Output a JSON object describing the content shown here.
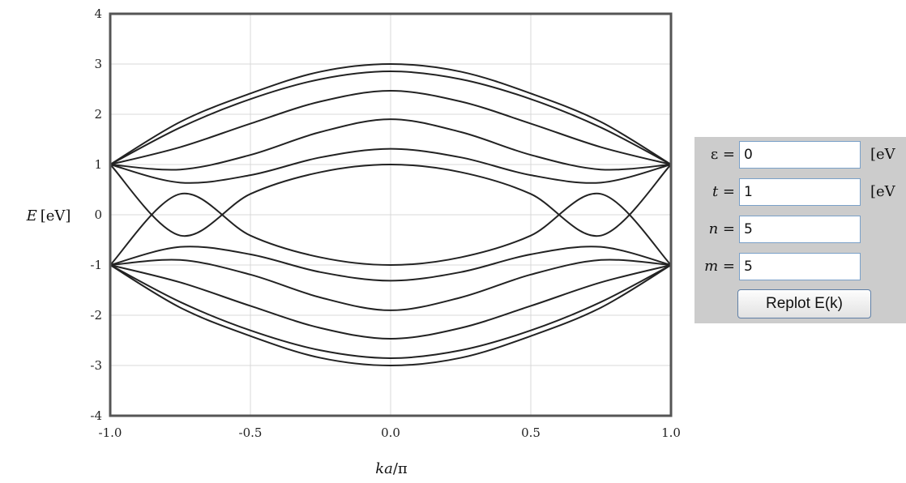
{
  "chart_data": {
    "type": "line",
    "title": "",
    "xlabel": {
      "prefix": "ka",
      "suffix": "/π"
    },
    "ylabel": {
      "var": "E",
      "unit": "[eV]"
    },
    "xlim": [
      -1.0,
      1.0
    ],
    "ylim": [
      -4,
      4
    ],
    "x_ticks": [
      -1.0,
      -0.5,
      0.0,
      0.5,
      1.0
    ],
    "x_tick_labels": [
      "-1.0",
      "-0.5",
      "0.0",
      "0.5",
      "1.0"
    ],
    "y_ticks": [
      -4,
      -3,
      -2,
      -1,
      0,
      1,
      2,
      3,
      4
    ],
    "y_tick_labels": [
      "-4",
      "-3",
      "-2",
      "-1",
      "0",
      "1",
      "2",
      "3",
      "4"
    ],
    "grid": true,
    "line_color": "#222222",
    "grid_color": "#d9d9d9",
    "frame_color": "#555555",
    "series": [
      {
        "x": [
          -1.0,
          -0.75,
          -0.5,
          -0.25,
          0.0,
          0.25,
          0.5,
          0.75,
          1.0
        ],
        "values": [
          1.0,
          1.848,
          2.414,
          2.848,
          3.0,
          2.848,
          2.414,
          1.848,
          1.0
        ]
      },
      {
        "x": [
          -1.0,
          -0.75,
          -0.5,
          -0.25,
          0.0,
          0.25,
          0.5,
          0.75,
          1.0
        ],
        "values": [
          1.0,
          1.737,
          2.302,
          2.698,
          2.854,
          2.698,
          2.302,
          1.737,
          1.0
        ]
      },
      {
        "x": [
          -1.0,
          -0.75,
          -0.5,
          -0.25,
          0.0,
          0.25,
          0.5,
          0.75,
          1.0
        ],
        "values": [
          1.0,
          1.346,
          1.814,
          2.254,
          2.468,
          2.254,
          1.814,
          1.346,
          1.0
        ]
      },
      {
        "x": [
          -1.0,
          -0.75,
          -0.5,
          -0.25,
          0.0,
          0.25,
          0.5,
          0.75,
          1.0
        ],
        "values": [
          1.0,
          0.9,
          1.191,
          1.647,
          1.902,
          1.647,
          1.191,
          0.9,
          1.0
        ]
      },
      {
        "x": [
          -1.0,
          -0.75,
          -0.5,
          -0.25,
          0.0,
          0.25,
          0.5,
          0.75,
          1.0
        ],
        "values": [
          1.0,
          0.64,
          0.788,
          1.142,
          1.313,
          1.142,
          0.788,
          0.64,
          1.0
        ]
      },
      {
        "x": [
          -1.0,
          -0.75,
          -0.5,
          -0.25,
          0.0,
          0.25,
          0.5,
          0.75,
          1.0
        ],
        "values": [
          1.0,
          -0.414,
          0.414,
          0.848,
          1.0,
          0.848,
          0.414,
          -0.414,
          1.0
        ]
      },
      {
        "x": [
          -1.0,
          -0.75,
          -0.5,
          -0.25,
          0.0,
          0.25,
          0.5,
          0.75,
          1.0
        ],
        "values": [
          -1.0,
          0.414,
          -0.414,
          -0.848,
          -1.0,
          -0.848,
          -0.414,
          0.414,
          -1.0
        ]
      },
      {
        "x": [
          -1.0,
          -0.75,
          -0.5,
          -0.25,
          0.0,
          0.25,
          0.5,
          0.75,
          1.0
        ],
        "values": [
          -1.0,
          -0.64,
          -0.788,
          -1.142,
          -1.313,
          -1.142,
          -0.788,
          -0.64,
          -1.0
        ]
      },
      {
        "x": [
          -1.0,
          -0.75,
          -0.5,
          -0.25,
          0.0,
          0.25,
          0.5,
          0.75,
          1.0
        ],
        "values": [
          -1.0,
          -0.9,
          -1.191,
          -1.647,
          -1.902,
          -1.647,
          -1.191,
          -0.9,
          -1.0
        ]
      },
      {
        "x": [
          -1.0,
          -0.75,
          -0.5,
          -0.25,
          0.0,
          0.25,
          0.5,
          0.75,
          1.0
        ],
        "values": [
          -1.0,
          -1.346,
          -1.814,
          -2.254,
          -2.468,
          -2.254,
          -1.814,
          -1.346,
          -1.0
        ]
      },
      {
        "x": [
          -1.0,
          -0.75,
          -0.5,
          -0.25,
          0.0,
          0.25,
          0.5,
          0.75,
          1.0
        ],
        "values": [
          -1.0,
          -1.737,
          -2.302,
          -2.698,
          -2.854,
          -2.698,
          -2.302,
          -1.737,
          -1.0
        ]
      },
      {
        "x": [
          -1.0,
          -0.75,
          -0.5,
          -0.25,
          0.0,
          0.25,
          0.5,
          0.75,
          1.0
        ],
        "values": [
          -1.0,
          -1.848,
          -2.414,
          -2.848,
          -3.0,
          -2.848,
          -2.414,
          -1.848,
          -1.0
        ]
      }
    ]
  },
  "controls": {
    "background": "#cccccc",
    "epsilon": {
      "label": "ε =",
      "value": "0",
      "unit": "[eV"
    },
    "t": {
      "label_var": "t",
      "label_eq": " =",
      "value": "1",
      "unit": "[eV"
    },
    "n": {
      "label_var": "n",
      "label_eq": " =",
      "value": "5"
    },
    "m": {
      "label_var": "m",
      "label_eq": " =",
      "value": "5"
    },
    "replot_label": "Replot E(k)"
  }
}
